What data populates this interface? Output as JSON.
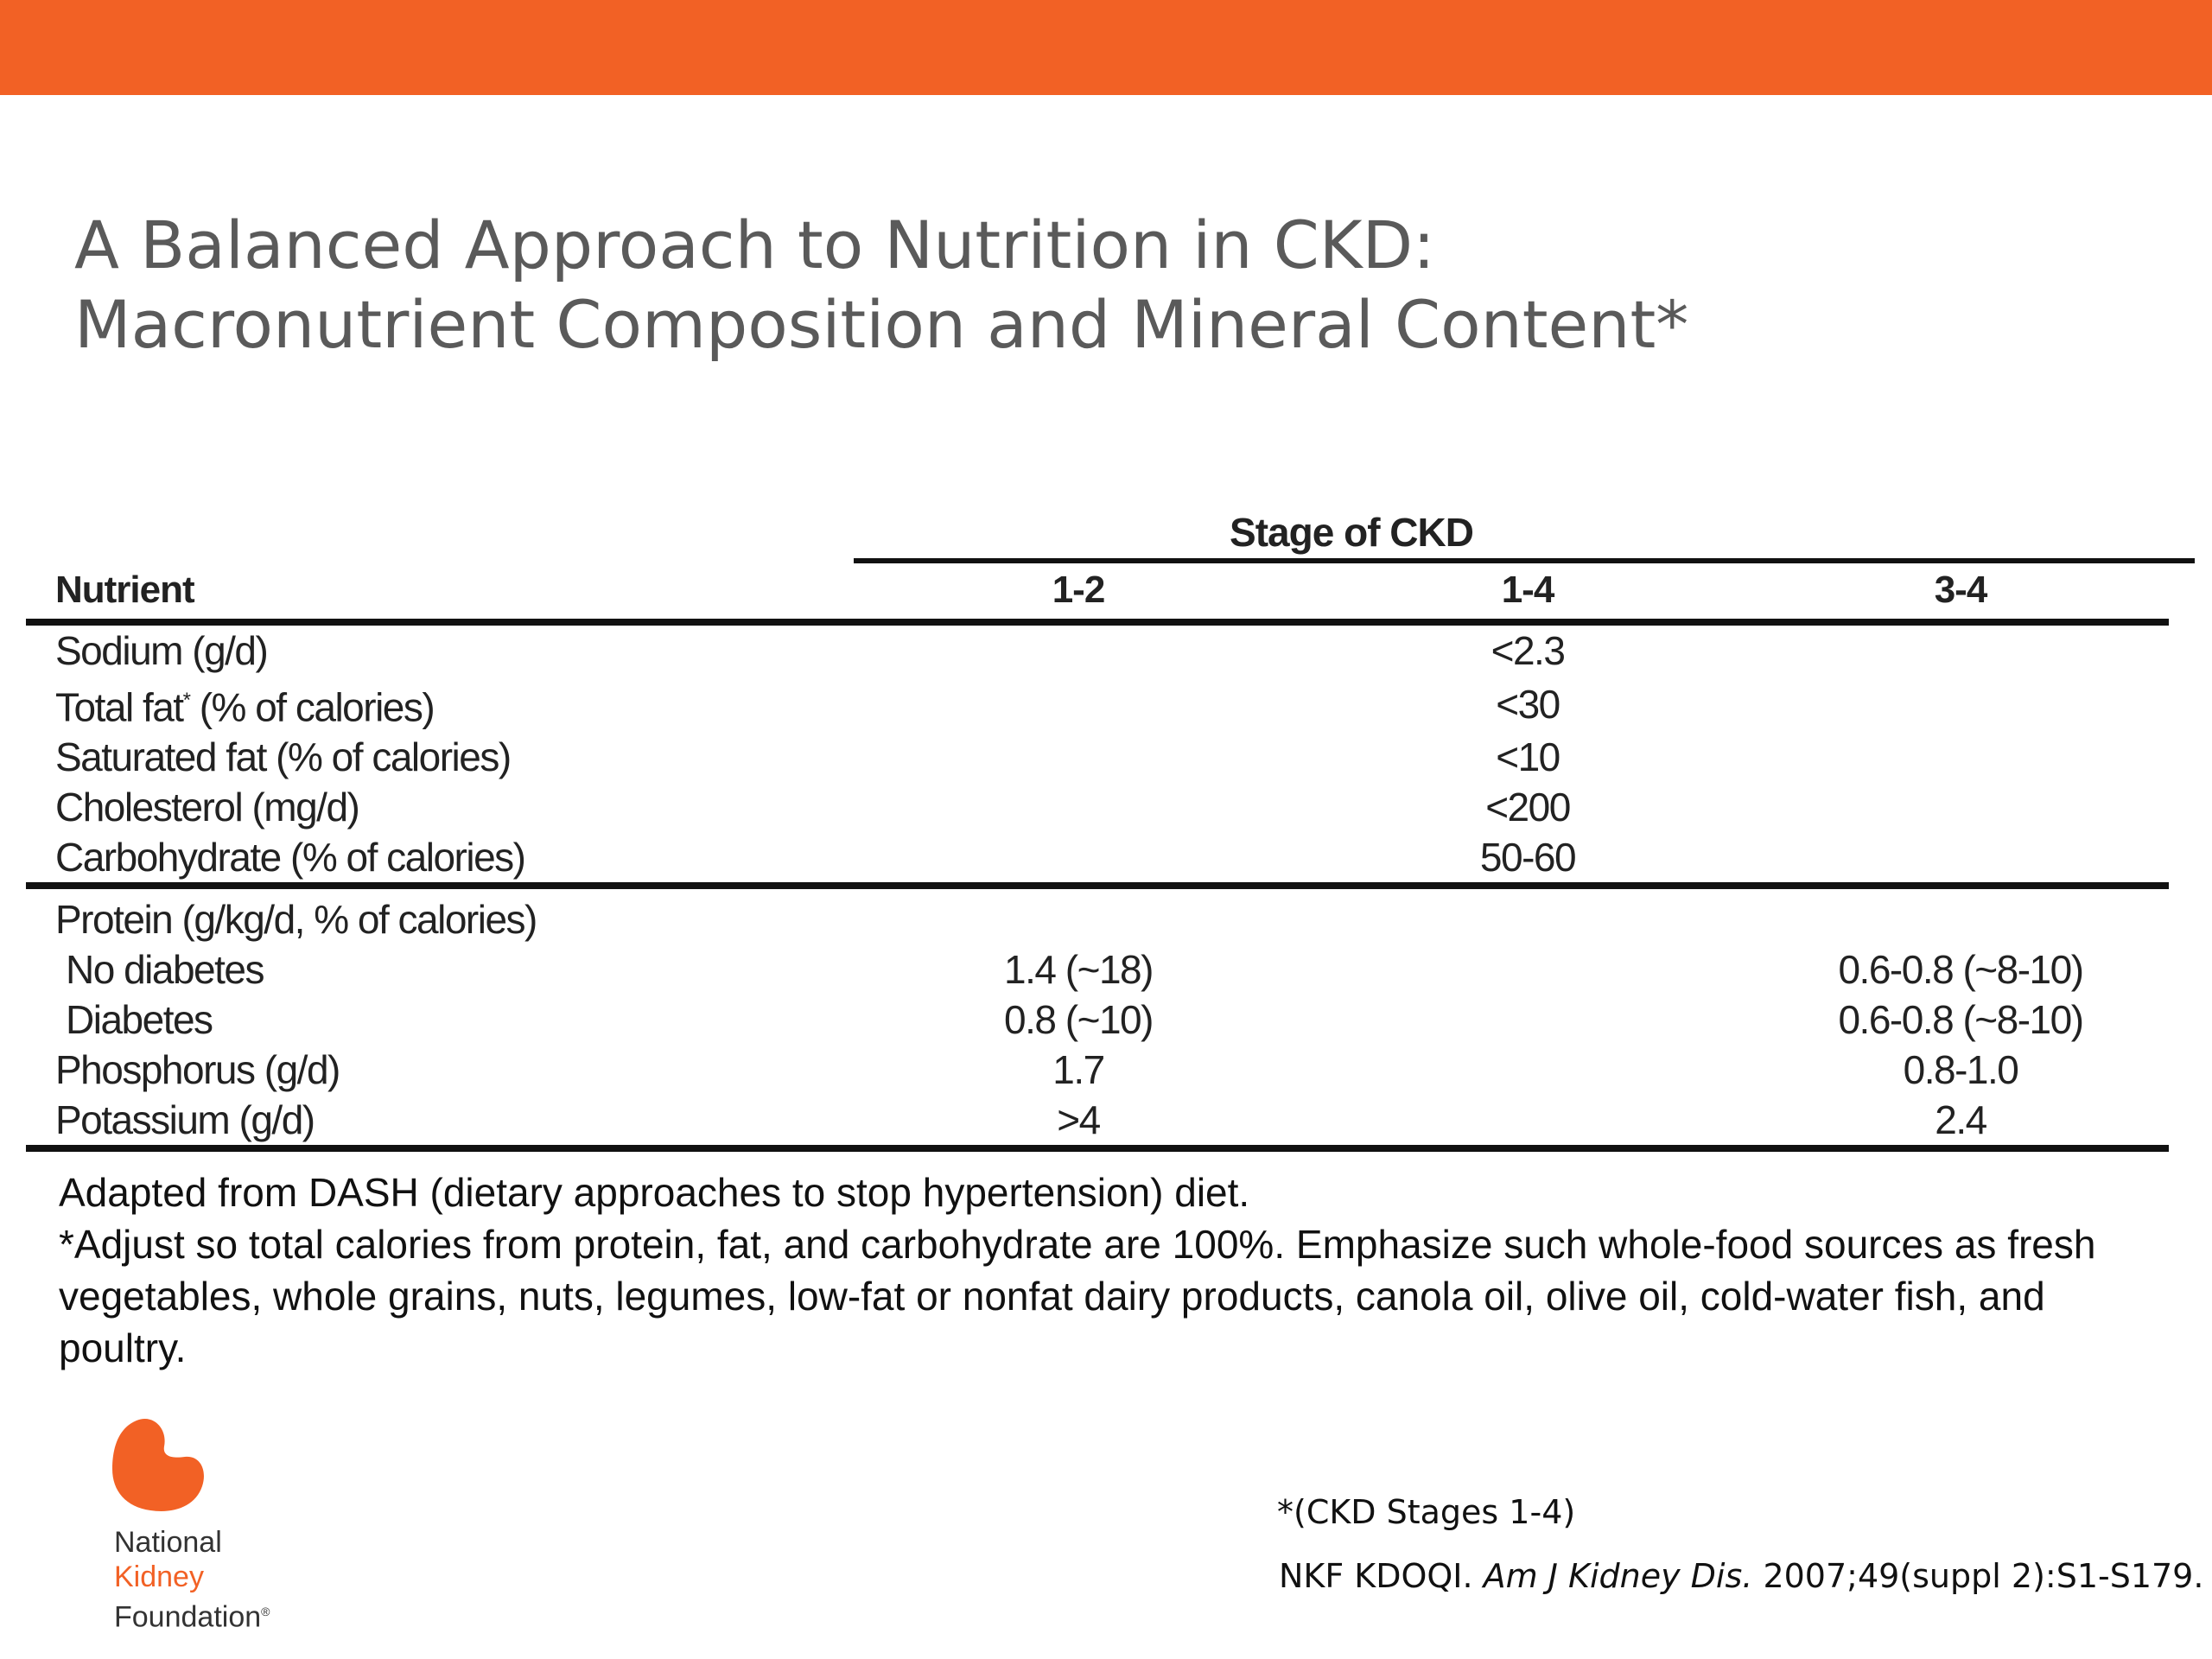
{
  "colors": {
    "brand_orange": "#f26125",
    "title_gray": "#5a5a5a",
    "rule": "#111111"
  },
  "title": {
    "line1": "A Balanced Approach to Nutrition in CKD:",
    "line2": "Macronutrient Composition and Mineral Content*"
  },
  "table": {
    "group_header": "Stage of CKD",
    "columns": [
      "Nutrient",
      "1-2",
      "1-4",
      "3-4"
    ],
    "rows": [
      {
        "nutrient": "Sodium (g/d)",
        "stage_1_2": "",
        "stage_1_4": "<2.3",
        "stage_3_4": ""
      },
      {
        "nutrient": "Total fat (% of calories)",
        "nutrient_pre": "Total fat",
        "nutrient_mark": "*",
        "nutrient_post": " (% of calories)",
        "stage_1_2": "",
        "stage_1_4": "<30",
        "stage_3_4": ""
      },
      {
        "nutrient": "Saturated fat (% of calories)",
        "stage_1_2": "",
        "stage_1_4": "<10",
        "stage_3_4": ""
      },
      {
        "nutrient": "Cholesterol (mg/d)",
        "stage_1_2": "",
        "stage_1_4": "<200",
        "stage_3_4": ""
      },
      {
        "nutrient": "Carbohydrate (% of calories)",
        "stage_1_2": "",
        "stage_1_4": "50-60",
        "stage_3_4": ""
      },
      {
        "nutrient": "Protein (g/kg/d, % of calories)",
        "stage_1_2": "",
        "stage_1_4": "",
        "stage_3_4": ""
      },
      {
        "nutrient": "No diabetes",
        "stage_1_2": "1.4 (~18)",
        "stage_1_4": "",
        "stage_3_4": "0.6-0.8 (~8-10)"
      },
      {
        "nutrient": "Diabetes",
        "stage_1_2": "0.8 (~10)",
        "stage_1_4": "",
        "stage_3_4": "0.6-0.8 (~8-10)"
      },
      {
        "nutrient": "Phosphorus (g/d)",
        "stage_1_2": "1.7",
        "stage_1_4": "",
        "stage_3_4": "0.8-1.0"
      },
      {
        "nutrient": "Potassium (g/d)",
        "stage_1_2": ">4",
        "stage_1_4": "",
        "stage_3_4": "2.4"
      }
    ]
  },
  "notes": {
    "line1": "Adapted from DASH (dietary approaches to stop hypertension) diet.",
    "line2": "*Adjust so total calories from protein, fat, and carbohydrate are 100%. Emphasize such whole-food sources as fresh vegetables, whole grains, nuts, legumes, low-fat or nonfat dairy products, canola oil, olive oil, cold-water fish, and poultry."
  },
  "logo": {
    "line1": "National",
    "line2": "Kidney",
    "line3": "Foundation",
    "mark": "®",
    "icon": "kidney-icon"
  },
  "footnote": "*(CKD Stages 1-4)",
  "citation": {
    "pre": "NKF KDOQI. ",
    "journal": "Am J Kidney Dis.",
    "post": " 2007;49(suppl 2):S1-S179."
  }
}
